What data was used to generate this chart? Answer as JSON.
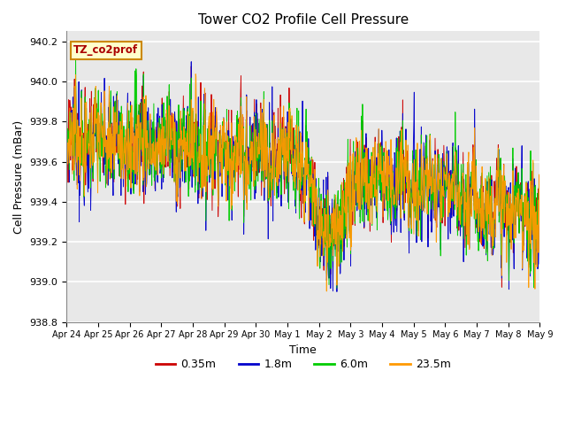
{
  "title": "Tower CO2 Profile Cell Pressure",
  "xlabel": "Time",
  "ylabel": "Cell Pressure (mBar)",
  "ylim": [
    938.8,
    940.25
  ],
  "annotation": "TZ_co2prof",
  "legend_labels": [
    "0.35m",
    "1.8m",
    "6.0m",
    "23.5m"
  ],
  "colors": [
    "#cc0000",
    "#0000cc",
    "#00cc00",
    "#ff9900"
  ],
  "x_tick_labels": [
    "Apr 24",
    "Apr 25",
    "Apr 26",
    "Apr 27",
    "Apr 28",
    "Apr 29",
    "Apr 30",
    "May 1",
    "May 2",
    "May 3",
    "May 4",
    "May 5",
    "May 6",
    "May 7",
    "May 8",
    "May 9"
  ],
  "yticks": [
    938.8,
    939.0,
    939.2,
    939.4,
    939.6,
    939.8,
    940.0,
    940.2
  ],
  "n_points": 1200,
  "seed": 7,
  "fig_width": 6.4,
  "fig_height": 4.8,
  "dpi": 100
}
